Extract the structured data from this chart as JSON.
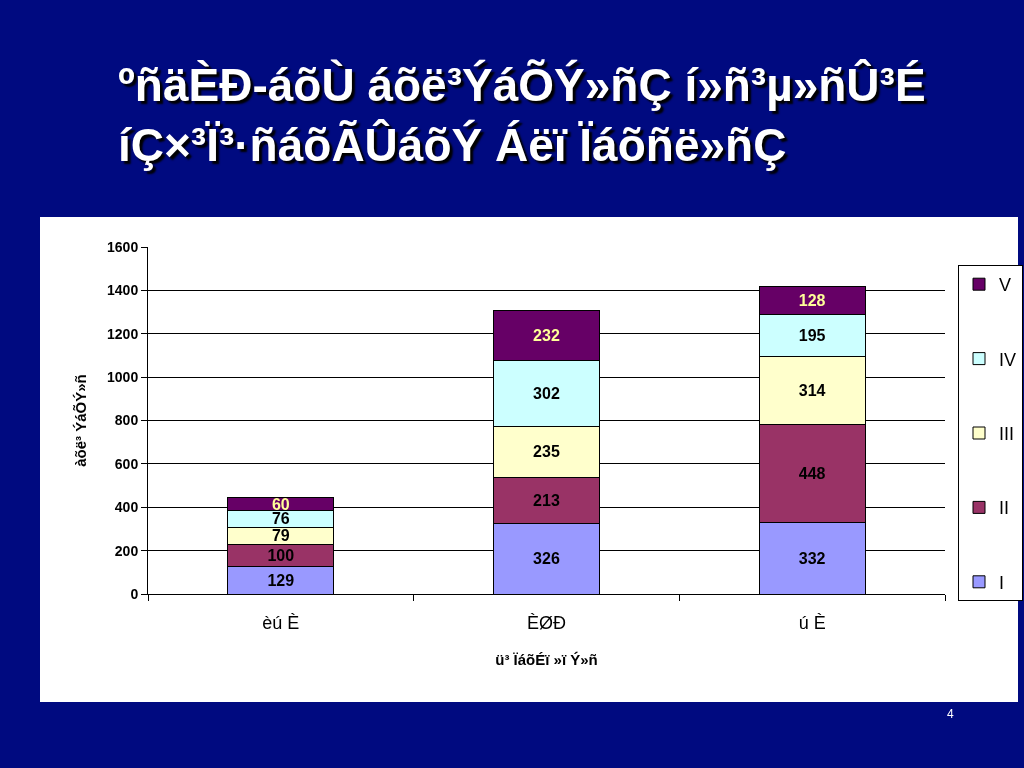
{
  "chart_data": {
    "type": "bar",
    "title": "ºñäÈÐ-áõÙ áõë³ÝáÕÝ»ñÇ í»ñ³µ»ñÛ³É\níÇ×³Ï³·ñáõÃÛáõÝ Áëï Ïáõñë»ñÇ",
    "xlabel": "ü³ ÏáõÉï »ï Ý»ñ",
    "ylabel": "àõë³ ÝáÕÝ»ñ",
    "categories": [
      "èú È",
      "ÈØÐ",
      "ú È"
    ],
    "series": [
      {
        "name": "I",
        "color": "#9999ff",
        "values": [
          129,
          326,
          332
        ]
      },
      {
        "name": "II",
        "color": "#993366",
        "values": [
          100,
          213,
          448
        ]
      },
      {
        "name": "III",
        "color": "#ffffcc",
        "values": [
          79,
          235,
          314
        ]
      },
      {
        "name": "IV",
        "color": "#ccffff",
        "values": [
          76,
          302,
          195
        ]
      },
      {
        "name": "V",
        "color": "#660066",
        "values": [
          60,
          232,
          128
        ]
      }
    ],
    "stacked": true,
    "data_labels": true,
    "legend": "right",
    "grid": "y",
    "ylim": [
      0,
      1600
    ],
    "yticks": [
      0,
      200,
      400,
      600,
      800,
      1000,
      1200,
      1400,
      1600
    ],
    "annotations": [
      "4"
    ]
  }
}
